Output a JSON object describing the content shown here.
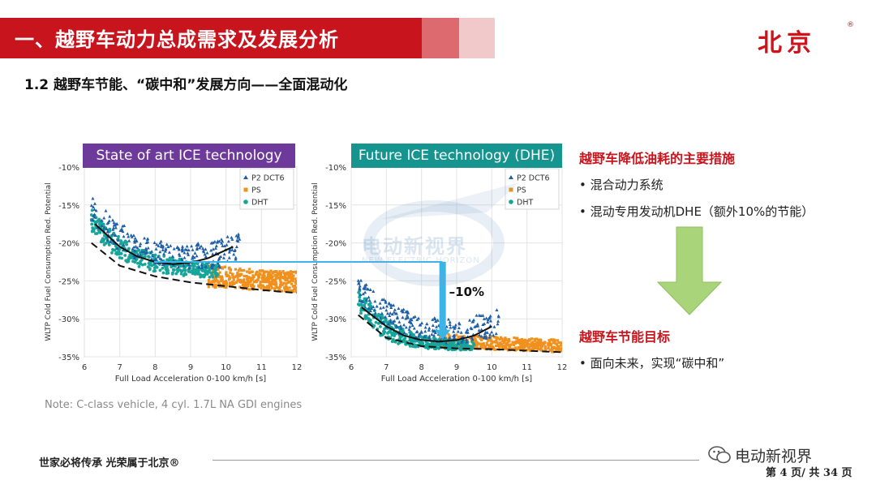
{
  "header": {
    "title": "一、越野车动力总成需求及发展分析",
    "logo": "北京",
    "logo_mark": "®"
  },
  "subtitle": "1.2 越野车节能、“碳中和”发展方向——全面混动化",
  "note": "Note: C-class vehicle, 4 cyl. 1.7L NA GDI engines",
  "right_panel": {
    "measures_title": "越野车降低油耗的主要措施",
    "measures": [
      "• 混合动力系统",
      "• 混动专用发动机DHE（额外10%的节能）"
    ],
    "goal_title": "越野车节能目标",
    "goals": [
      "• 面向未来，实现“碳中和”"
    ]
  },
  "annotation": "–10%",
  "watermark": {
    "text": "电动新视界",
    "sub": "NEW ELECTRIC HORIZON"
  },
  "footer": {
    "slogan": "世家必将传承  光荣属于北京®",
    "wechat": "电动新视界",
    "page": "第 4 页/ 共 34 页"
  },
  "colors": {
    "brand_red": "#c8141c",
    "purple": "#6d3a9c",
    "teal": "#159490",
    "p2": "#1f5fa6",
    "ps": "#f0901e",
    "dht": "#17a59a",
    "arrow_green": "#a9d47a",
    "link_blue": "#3bb4e6"
  },
  "chart_data": [
    {
      "type": "scatter",
      "title": "State of art ICE technology",
      "xlabel": "Full Load Acceleration 0-100 km/h [s]",
      "ylabel": "WLTP Cold Fuel Consumption Red. Potential",
      "xlim": [
        6,
        12
      ],
      "ylim": [
        -35,
        -10
      ],
      "xticks": [
        "6",
        "7",
        "8",
        "9",
        "10",
        "11",
        "12"
      ],
      "yticks": [
        "-10%",
        "-15%",
        "-20%",
        "-25%",
        "-30%",
        "-35%"
      ],
      "legend_position": "top-right",
      "grid": true,
      "series": [
        {
          "name": "P2 DCT6",
          "x_range": [
            6.2,
            10.4
          ],
          "y_top": [
            -13.5,
            -16.5,
            -18.5,
            -19.5,
            -20.5,
            -20.0,
            -19.5,
            -18.5
          ],
          "y_bot": [
            -17.5,
            -20.5,
            -22.0,
            -22.8,
            -23.3,
            -23.5,
            -23.3,
            -22.0
          ]
        },
        {
          "name": "PS",
          "x_range": [
            9.5,
            12
          ],
          "y_top": [
            -22.8,
            -23.3,
            -23.6,
            -23.8
          ],
          "y_bot": [
            -25.8,
            -26.0,
            -26.3,
            -26.5
          ]
        },
        {
          "name": "DHT",
          "x_range": [
            6.2,
            9.8
          ],
          "y_top": [
            -15.5,
            -18.5,
            -20.5,
            -21.5,
            -22.0,
            -22.5,
            -23.0
          ],
          "y_bot": [
            -18.5,
            -21.5,
            -23.0,
            -23.8,
            -24.2,
            -24.5,
            -24.6
          ]
        }
      ],
      "frontier": {
        "x": [
          6.2,
          7,
          8,
          9,
          10,
          11,
          12
        ],
        "y": [
          -20.0,
          -23.0,
          -24.4,
          -25.2,
          -25.7,
          -26.2,
          -26.6
        ]
      },
      "trend": {
        "x": [
          6.3,
          7,
          7.5,
          8,
          8.5,
          9,
          9.5,
          10.2
        ],
        "y": [
          -17.5,
          -20.5,
          -21.8,
          -22.5,
          -22.8,
          -22.6,
          -22.0,
          -20.5
        ]
      }
    },
    {
      "type": "scatter",
      "title": "Future ICE technology (DHE)",
      "xlabel": "Full Load Acceleration 0-100 km/h [s]",
      "ylabel": "WLTP Cold Fuel Consumption Red. Potential",
      "xlim": [
        6,
        12
      ],
      "ylim": [
        -35,
        -10
      ],
      "xticks": [
        "6",
        "7",
        "8",
        "9",
        "10",
        "11",
        "12"
      ],
      "yticks": [
        "-10%",
        "-15%",
        "-20%",
        "-25%",
        "-30%",
        "-35%"
      ],
      "legend_position": "top-right",
      "grid": true,
      "series": [
        {
          "name": "P2 DCT6",
          "x_range": [
            6.2,
            10.2
          ],
          "y_top": [
            -24.5,
            -27.0,
            -28.5,
            -29.5,
            -30.0,
            -30.0,
            -29.5,
            -28.5
          ],
          "y_bot": [
            -27.5,
            -30.5,
            -32.0,
            -32.8,
            -33.2,
            -33.3,
            -33.0,
            -32.0
          ]
        },
        {
          "name": "PS",
          "x_range": [
            8.5,
            12
          ],
          "y_top": [
            -32.0,
            -32.3,
            -32.5,
            -32.8
          ],
          "y_bot": [
            -33.8,
            -34.0,
            -34.2,
            -34.4
          ]
        },
        {
          "name": "DHT",
          "x_range": [
            6.2,
            9.5
          ],
          "y_top": [
            -26.0,
            -29.0,
            -31.0,
            -32.0,
            -32.5,
            -32.8,
            -33.0
          ],
          "y_bot": [
            -29.0,
            -32.0,
            -33.3,
            -33.8,
            -34.0,
            -34.1,
            -34.1
          ]
        }
      ],
      "frontier": {
        "x": [
          6.2,
          7,
          8,
          9,
          10,
          11,
          12
        ],
        "y": [
          -29.5,
          -32.5,
          -33.6,
          -33.9,
          -34.0,
          -34.2,
          -34.4
        ]
      },
      "trend": {
        "x": [
          6.3,
          7,
          7.5,
          8,
          8.5,
          9,
          9.5,
          10.0
        ],
        "y": [
          -28.5,
          -31.0,
          -32.2,
          -32.8,
          -33.0,
          -32.8,
          -32.2,
          -31.0
        ]
      }
    }
  ]
}
